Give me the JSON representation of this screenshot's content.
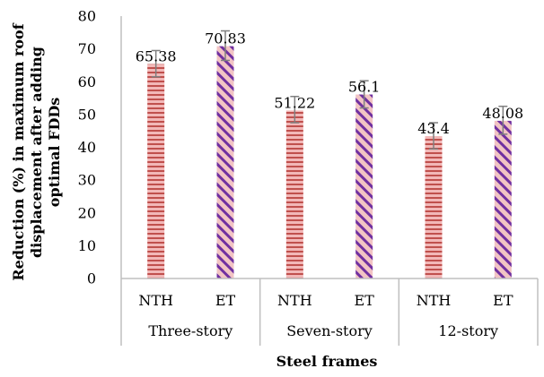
{
  "chart_data": {
    "type": "bar",
    "title": "",
    "ylabel_lines": [
      "Reduction (%) in maximum roof",
      "displacement after adding",
      "optimal FDDs"
    ],
    "xlabel": "Steel frames",
    "ylim": [
      0,
      80
    ],
    "yticks": [
      0,
      10,
      20,
      30,
      40,
      50,
      60,
      70,
      80
    ],
    "grid": false,
    "legend": "none",
    "groups": [
      {
        "label": "Three-story",
        "bars": [
          {
            "category": "NTH",
            "value": 65.38,
            "value_label": "65.38",
            "error_low": 61.5,
            "error_high": 69.5
          },
          {
            "category": "ET",
            "value": 70.83,
            "value_label": "70.83",
            "error_low": 66.5,
            "error_high": 75.5
          }
        ]
      },
      {
        "label": "Seven-story",
        "bars": [
          {
            "category": "NTH",
            "value": 51.22,
            "value_label": "51.22",
            "error_low": 47.5,
            "error_high": 55.5
          },
          {
            "category": "ET",
            "value": 56.1,
            "value_label": "56.1",
            "error_low": 52,
            "error_high": 60.3
          }
        ]
      },
      {
        "label": "12-story",
        "bars": [
          {
            "category": "NTH",
            "value": 43.4,
            "value_label": "43.4",
            "error_low": 39.5,
            "error_high": 47.5
          },
          {
            "category": "ET",
            "value": 48.08,
            "value_label": "48.08",
            "error_low": 44,
            "error_high": 52.5
          }
        ]
      }
    ],
    "colors": {
      "nth_base": "#f2b8b8",
      "nth_stripe": "#c0504d",
      "et_base": "#f2c4c4",
      "et_stripe": "#7030a0",
      "error_bar": "#7f7f7f",
      "axis": "#bfbfbf"
    }
  }
}
